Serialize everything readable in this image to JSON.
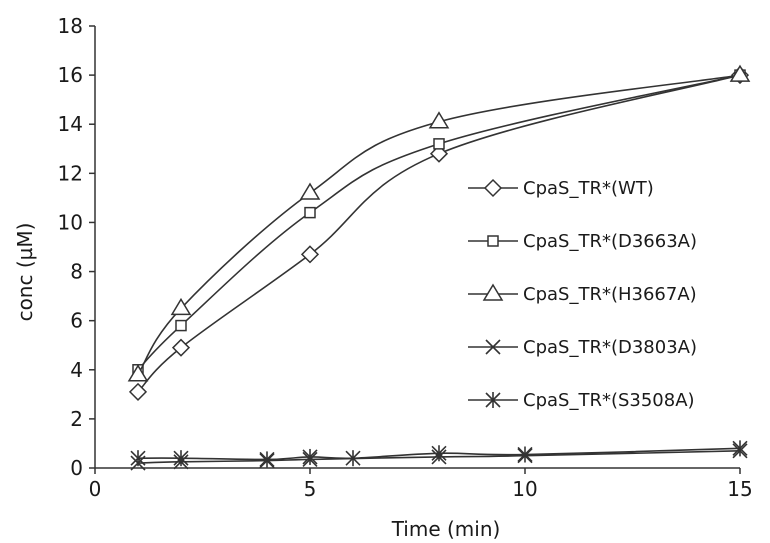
{
  "chart_data": {
    "type": "line",
    "xlabel": "Time (min)",
    "ylabel": "conc (µM)",
    "xlim": [
      0,
      15
    ],
    "ylim": [
      0,
      18
    ],
    "xticks": [
      "0",
      "5",
      "10",
      "15"
    ],
    "yticks": [
      "0",
      "2",
      "4",
      "6",
      "8",
      "10",
      "12",
      "14",
      "16",
      "18"
    ],
    "grid": false,
    "legend_position": "right",
    "series": [
      {
        "name": "CpaS_TR*(WT)",
        "marker": "diamond",
        "x": [
          1,
          2,
          5,
          8,
          15
        ],
        "y": [
          3.1,
          4.9,
          8.7,
          12.8,
          16.0
        ]
      },
      {
        "name": "CpaS_TR*(D3663A)",
        "marker": "square",
        "x": [
          1,
          2,
          5,
          8,
          15
        ],
        "y": [
          4.0,
          5.8,
          10.4,
          13.2,
          16.0
        ]
      },
      {
        "name": "CpaS_TR*(H3667A)",
        "marker": "triangle",
        "x": [
          1,
          2,
          5,
          8,
          15
        ],
        "y": [
          3.8,
          6.5,
          11.2,
          14.1,
          16.0
        ]
      },
      {
        "name": "CpaS_TR*(D3803A)",
        "marker": "x",
        "x": [
          1,
          2,
          4,
          5,
          8,
          10,
          15
        ],
        "y": [
          0.2,
          0.25,
          0.3,
          0.35,
          0.45,
          0.5,
          0.7
        ]
      },
      {
        "name": "CpaS_TR*(S3508A)",
        "marker": "asterisk",
        "x": [
          1,
          2,
          4,
          5,
          6,
          8,
          10,
          15
        ],
        "y": [
          0.4,
          0.4,
          0.35,
          0.45,
          0.4,
          0.6,
          0.55,
          0.8
        ]
      }
    ]
  }
}
